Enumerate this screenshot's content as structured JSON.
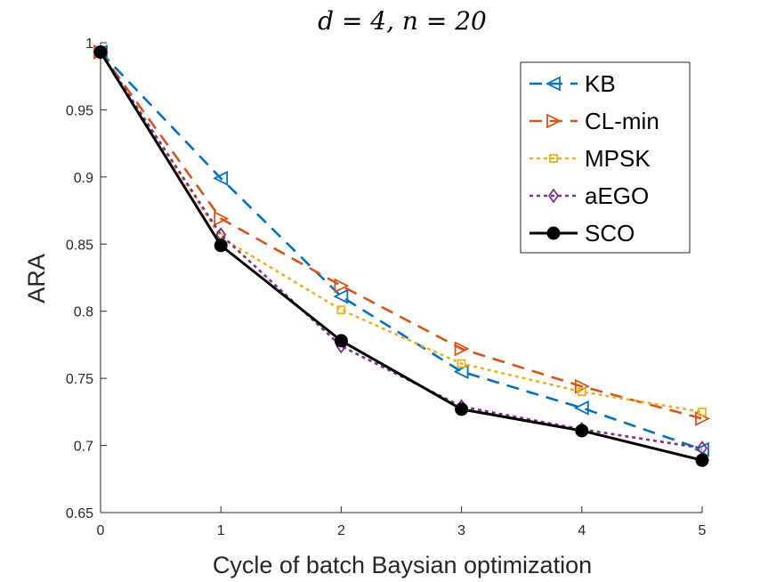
{
  "chart_data": {
    "type": "line",
    "title": "d = 4, n = 20",
    "xlabel": "Cycle of batch Baysian optimization",
    "ylabel": "ARA",
    "xlim": [
      0,
      5
    ],
    "ylim": [
      0.65,
      1.0
    ],
    "x": [
      0,
      1,
      2,
      3,
      4,
      5
    ],
    "x_tick_labels": [
      "0",
      "1",
      "2",
      "3",
      "4",
      "5"
    ],
    "y_ticks": [
      0.65,
      0.7,
      0.75,
      0.8,
      0.85,
      0.9,
      0.95,
      1.0
    ],
    "y_tick_labels": [
      "0.65",
      "0.7",
      "0.75",
      "0.8",
      "0.85",
      "0.9",
      "0.95",
      "1"
    ],
    "legend_position": "top-right",
    "series": [
      {
        "name": "KB",
        "color": "#0072BD",
        "dash": "dashed",
        "marker": "triangle-left",
        "values": [
          0.993,
          0.899,
          0.811,
          0.755,
          0.728,
          0.697
        ]
      },
      {
        "name": "CL-min",
        "color": "#D95319",
        "dash": "dashed",
        "marker": "triangle-right",
        "values": [
          0.993,
          0.869,
          0.819,
          0.772,
          0.744,
          0.72
        ]
      },
      {
        "name": "MPSK",
        "color": "#EDB120",
        "dash": "dotted",
        "marker": "square",
        "values": [
          0.993,
          0.855,
          0.801,
          0.761,
          0.74,
          0.725
        ]
      },
      {
        "name": "aEGO",
        "color": "#7E2F8E",
        "dash": "dotted",
        "marker": "diamond",
        "values": [
          0.993,
          0.857,
          0.774,
          0.729,
          0.712,
          0.698
        ]
      },
      {
        "name": "SCO",
        "color": "#000000",
        "dash": "solid",
        "marker": "circle",
        "values": [
          0.993,
          0.849,
          0.778,
          0.727,
          0.711,
          0.689
        ]
      }
    ]
  }
}
